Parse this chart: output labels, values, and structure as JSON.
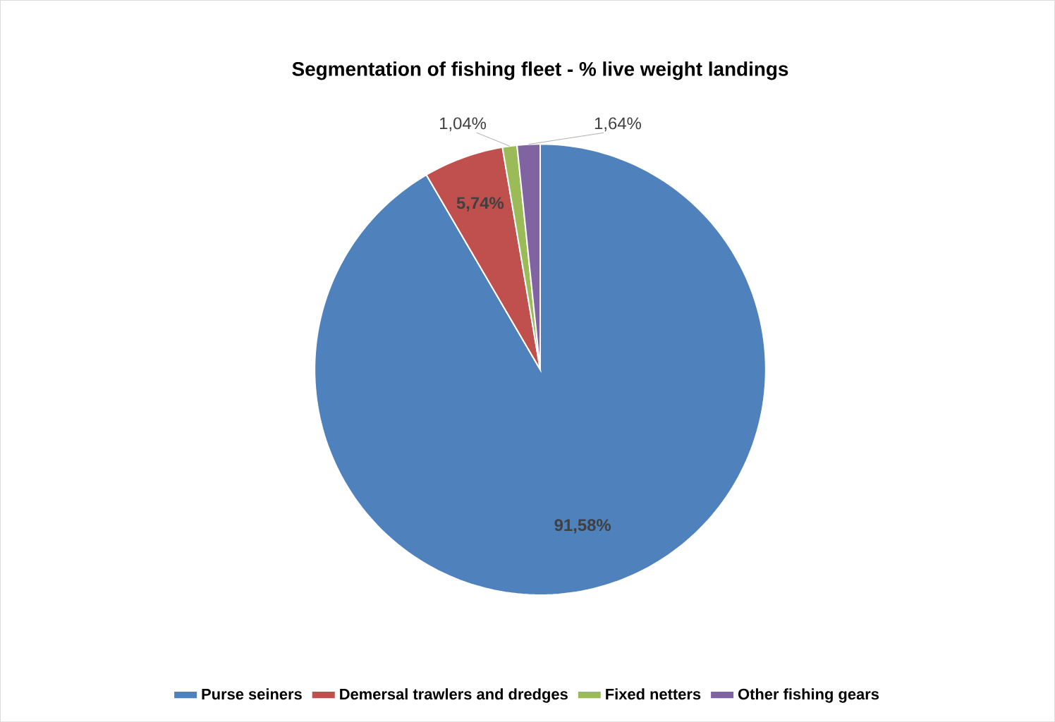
{
  "chart_data": {
    "type": "pie",
    "title": "Segmentation of fishing fleet - %  live weight landings",
    "categories": [
      "Purse seiners",
      "Demersal trawlers and dredges",
      "Fixed netters",
      "Other fishing gears"
    ],
    "values": [
      91.58,
      5.74,
      1.04,
      1.64
    ],
    "value_labels": [
      "91,58%",
      "5,74%",
      "1,04%",
      "1,64%"
    ],
    "colors": [
      "#4f81bd",
      "#c0504d",
      "#9bbb59",
      "#8064a2"
    ],
    "legend": "bottom"
  }
}
